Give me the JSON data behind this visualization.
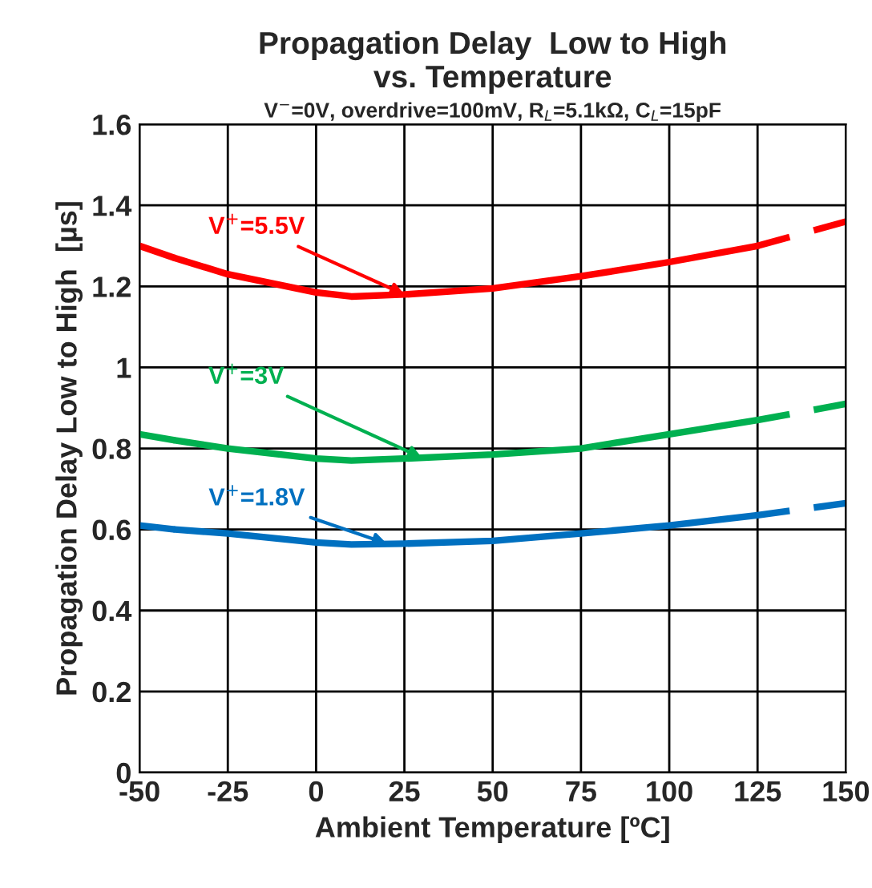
{
  "chart_data": {
    "type": "line",
    "title": "Propagation Delay  Low to High\nvs. Temperature",
    "subtitle": "V$^{−}$=0V, overdrive=100mV, R$_{L}$=5.1kΩ, C$_{L}$=15pF",
    "xlabel": "Ambient Temperature [ºC]",
    "ylabel": "Propagation Delay Low to High  [µs]",
    "xlim": [
      -50,
      150
    ],
    "xticks": [
      -50,
      -25,
      0,
      25,
      50,
      75,
      100,
      125,
      150
    ],
    "ylim": [
      0,
      1.6
    ],
    "yticks": [
      0,
      0.2,
      0.4,
      0.6,
      0.8,
      1,
      1.2,
      1.4,
      1.6
    ],
    "grid": true,
    "legend": false,
    "marker": "none",
    "series": [
      {
        "color": "#ff0000",
        "line_style": "dashed",
        "x": [
          -50,
          -40
        ],
        "values": [
          1.3,
          1.27
        ]
      },
      {
        "color": "#ff0000",
        "line_style": "solid",
        "x": [
          -40,
          -25,
          0,
          10,
          25,
          50,
          75,
          100,
          125
        ],
        "values": [
          1.27,
          1.23,
          1.185,
          1.175,
          1.18,
          1.195,
          1.225,
          1.26,
          1.3
        ]
      },
      {
        "color": "#ff0000",
        "line_style": "dashed",
        "x": [
          125,
          150
        ],
        "values": [
          1.3,
          1.36
        ]
      },
      {
        "color": "#00b050",
        "line_style": "dashed",
        "x": [
          -50,
          -40
        ],
        "values": [
          0.835,
          0.82
        ]
      },
      {
        "color": "#00b050",
        "line_style": "solid",
        "x": [
          -40,
          -25,
          0,
          10,
          25,
          50,
          75,
          100,
          125
        ],
        "values": [
          0.82,
          0.8,
          0.775,
          0.77,
          0.775,
          0.785,
          0.8,
          0.835,
          0.87
        ]
      },
      {
        "color": "#00b050",
        "line_style": "dashed",
        "x": [
          125,
          150
        ],
        "values": [
          0.87,
          0.91
        ]
      },
      {
        "color": "#0070c0",
        "line_style": "dashed",
        "x": [
          -50,
          -40
        ],
        "values": [
          0.61,
          0.6
        ]
      },
      {
        "color": "#0070c0",
        "line_style": "solid",
        "x": [
          -40,
          -25,
          0,
          10,
          25,
          50,
          75,
          100,
          125
        ],
        "values": [
          0.6,
          0.59,
          0.568,
          0.563,
          0.565,
          0.572,
          0.59,
          0.61,
          0.635
        ]
      },
      {
        "color": "#0070c0",
        "line_style": "dashed",
        "x": [
          125,
          150
        ],
        "values": [
          0.635,
          0.665
        ]
      }
    ],
    "annotations": [
      {
        "text": "V$^{+}$=5.5V",
        "x": 25,
        "y": 1.18
      },
      {
        "text": "V$^{+}$=3V",
        "x": 30,
        "y": 0.777
      },
      {
        "text": "V$^{+}$=1.8V",
        "x": 20,
        "y": 0.565
      }
    ]
  }
}
